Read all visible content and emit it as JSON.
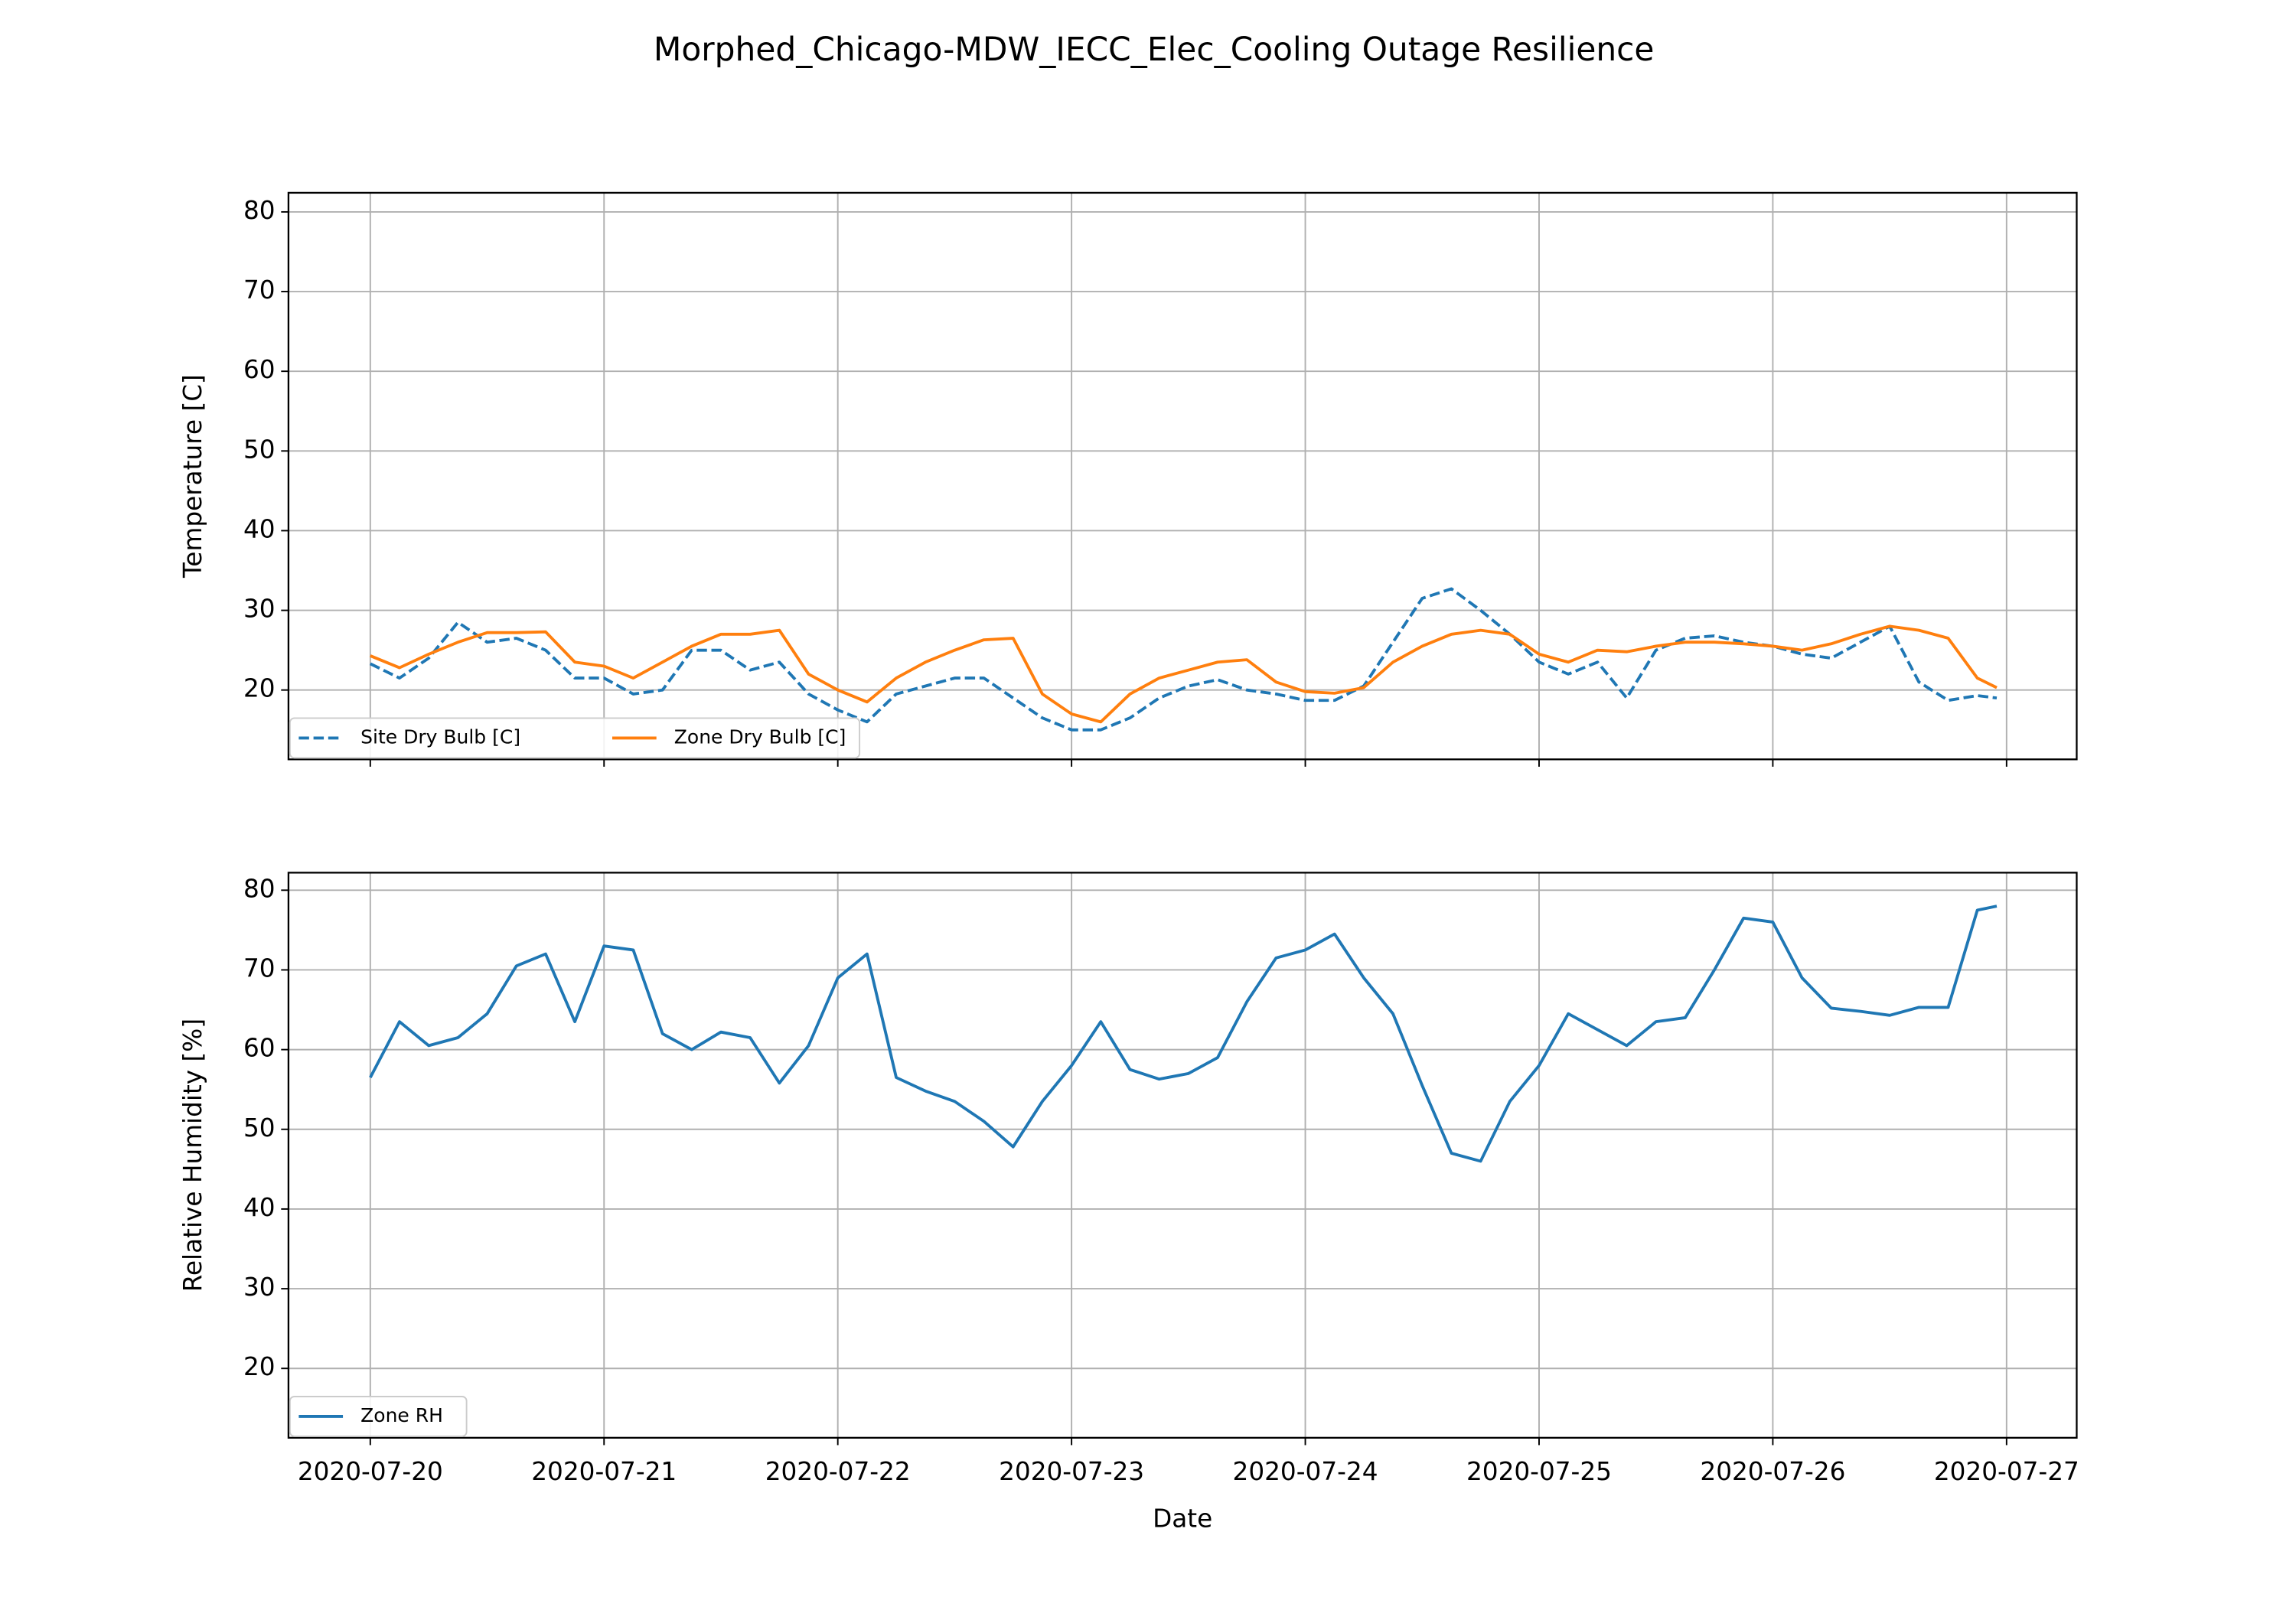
{
  "chart_data": [
    {
      "type": "line",
      "title": "Morphed_Chicago-MDW_IECC_Elec_Cooling Outage Resilience",
      "ylabel": "Temperature [C]",
      "x": [
        0,
        0.125,
        0.25,
        0.375,
        0.5,
        0.625,
        0.75,
        0.875,
        1,
        1.125,
        1.25,
        1.375,
        1.5,
        1.625,
        1.75,
        1.875,
        2,
        2.125,
        2.25,
        2.375,
        2.5,
        2.625,
        2.75,
        2.875,
        3,
        3.125,
        3.25,
        3.375,
        3.5,
        3.625,
        3.75,
        3.875,
        4,
        4.125,
        4.25,
        4.375,
        4.5,
        4.625,
        4.75,
        4.875,
        5,
        5.125,
        5.25,
        5.375,
        5.5,
        5.625,
        5.75,
        5.875,
        6,
        6.125,
        6.25,
        6.375,
        6.5,
        6.625,
        6.75,
        6.875,
        6.958
      ],
      "xlim": [
        -0.35,
        7.3
      ],
      "xticks": [
        {
          "value": 0,
          "label": "2020-07-20"
        },
        {
          "value": 1,
          "label": "2020-07-21"
        },
        {
          "value": 2,
          "label": "2020-07-22"
        },
        {
          "value": 3,
          "label": "2020-07-23"
        },
        {
          "value": 4,
          "label": "2020-07-24"
        },
        {
          "value": 5,
          "label": "2020-07-25"
        },
        {
          "value": 6,
          "label": "2020-07-26"
        },
        {
          "value": 7,
          "label": "2020-07-27"
        }
      ],
      "ylim": [
        11.3,
        82.4
      ],
      "yticks": [
        20,
        30,
        40,
        50,
        60,
        70,
        80
      ],
      "grid": true,
      "legend": "lower left",
      "series": [
        {
          "name": "Site Dry Bulb [C]",
          "color": "#1f77b4",
          "linestyle": "dashed",
          "values": [
            23.3,
            21.5,
            24,
            28.5,
            26,
            26.5,
            25,
            21.5,
            21.5,
            19.5,
            20,
            25,
            25,
            22.5,
            23.5,
            19.5,
            17.5,
            16,
            19.5,
            20.5,
            21.5,
            21.5,
            19,
            16.5,
            15,
            15,
            16.5,
            19,
            20.5,
            21.3,
            20,
            19.5,
            18.7,
            18.7,
            20.5,
            26,
            31.5,
            32.7,
            30,
            27,
            23.5,
            22,
            23.5,
            19,
            25,
            26.5,
            26.8,
            26,
            25.5,
            24.5,
            24,
            26,
            28,
            21,
            18.7,
            19.3,
            19
          ]
        },
        {
          "name": "Zone Dry Bulb [C]",
          "color": "#ff7f0e",
          "linestyle": "solid",
          "values": [
            24.3,
            22.8,
            24.5,
            26,
            27.2,
            27.2,
            27.3,
            23.5,
            23,
            21.5,
            23.5,
            25.5,
            27,
            27,
            27.5,
            22,
            20,
            18.5,
            21.5,
            23.5,
            25,
            26.3,
            26.5,
            19.5,
            17,
            16,
            19.5,
            21.5,
            22.5,
            23.5,
            23.8,
            21,
            19.8,
            19.6,
            20.3,
            23.5,
            25.5,
            27,
            27.5,
            27,
            24.5,
            23.5,
            25,
            24.8,
            25.5,
            26,
            26,
            25.8,
            25.5,
            25,
            25.8,
            27,
            28,
            27.5,
            26.5,
            21.5,
            20.3
          ]
        }
      ]
    },
    {
      "type": "line",
      "ylabel": "Relative Humidity [%]",
      "xlabel": "Date",
      "x": [
        0,
        0.125,
        0.25,
        0.375,
        0.5,
        0.625,
        0.75,
        0.875,
        1,
        1.125,
        1.25,
        1.375,
        1.5,
        1.625,
        1.75,
        1.875,
        2,
        2.125,
        2.25,
        2.375,
        2.5,
        2.625,
        2.75,
        2.875,
        3,
        3.125,
        3.25,
        3.375,
        3.5,
        3.625,
        3.75,
        3.875,
        4,
        4.125,
        4.25,
        4.375,
        4.5,
        4.625,
        4.75,
        4.875,
        5,
        5.125,
        5.25,
        5.375,
        5.5,
        5.625,
        5.75,
        5.875,
        6,
        6.125,
        6.25,
        6.375,
        6.5,
        6.625,
        6.75,
        6.875,
        6.958
      ],
      "xlim": [
        -0.35,
        7.3
      ],
      "xticks": [
        {
          "value": 0,
          "label": "2020-07-20"
        },
        {
          "value": 1,
          "label": "2020-07-21"
        },
        {
          "value": 2,
          "label": "2020-07-22"
        },
        {
          "value": 3,
          "label": "2020-07-23"
        },
        {
          "value": 4,
          "label": "2020-07-24"
        },
        {
          "value": 5,
          "label": "2020-07-25"
        },
        {
          "value": 6,
          "label": "2020-07-26"
        },
        {
          "value": 7,
          "label": "2020-07-27"
        }
      ],
      "ylim": [
        11.3,
        82.2
      ],
      "yticks": [
        20,
        30,
        40,
        50,
        60,
        70,
        80
      ],
      "grid": true,
      "legend": "lower left",
      "series": [
        {
          "name": "Zone RH",
          "color": "#1f77b4",
          "linestyle": "solid",
          "values": [
            56.5,
            63.5,
            60.5,
            61.5,
            64.5,
            70.5,
            72,
            63.5,
            73,
            72.5,
            62,
            60,
            62.2,
            61.5,
            55.8,
            60.5,
            69,
            72,
            56.5,
            54.8,
            53.5,
            51,
            47.8,
            53.5,
            58,
            63.5,
            57.5,
            56.3,
            57,
            59,
            66,
            71.5,
            72.5,
            74.5,
            69,
            64.5,
            55.5,
            47,
            46,
            53.5,
            58,
            64.5,
            62.5,
            60.5,
            63.5,
            64,
            70,
            76.5,
            76,
            69,
            65.2,
            64.8,
            64.3,
            65.3,
            65.3,
            77.5,
            78
          ]
        }
      ]
    }
  ]
}
